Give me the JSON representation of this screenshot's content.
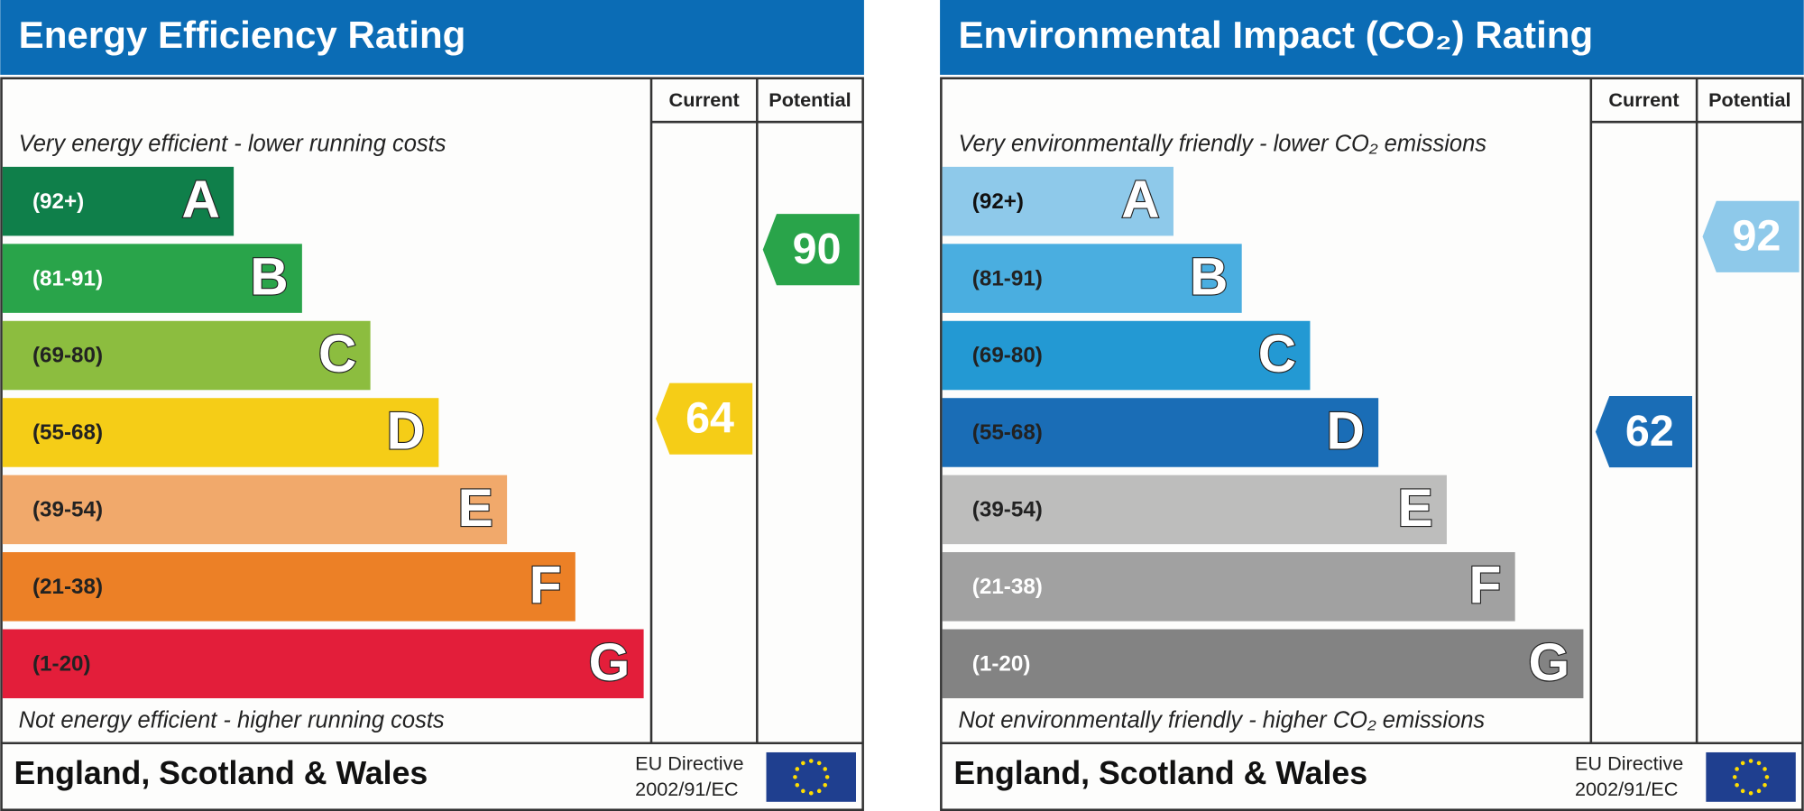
{
  "panels": [
    {
      "title": "Energy Efficiency Rating",
      "columns": [
        "Current",
        "Potential"
      ],
      "top_note": "Very energy efficient - lower running costs",
      "bottom_note": "Not energy efficient - higher running costs",
      "bands": [
        {
          "range": "(92+)",
          "letter": "A",
          "color": "#0f7f4a",
          "label_color": "#ffffff"
        },
        {
          "range": "(81-91)",
          "letter": "B",
          "color": "#29a44a",
          "label_color": "#ffffff"
        },
        {
          "range": "(69-80)",
          "letter": "C",
          "color": "#8cbd3f",
          "label_color": "#222222"
        },
        {
          "range": "(55-68)",
          "letter": "D",
          "color": "#f5cd17",
          "label_color": "#222222"
        },
        {
          "range": "(39-54)",
          "letter": "E",
          "color": "#f1a96b",
          "label_color": "#222222"
        },
        {
          "range": "(21-38)",
          "letter": "F",
          "color": "#ec8026",
          "label_color": "#222222"
        },
        {
          "range": "(1-20)",
          "letter": "G",
          "color": "#e31e3a",
          "label_color": "#222222"
        }
      ],
      "current": 64,
      "current_color": "#f5cd17",
      "potential": 90,
      "potential_color": "#29a44a",
      "footer": "England, Scotland & Wales",
      "directive": [
        "EU Directive",
        "2002/91/EC"
      ]
    },
    {
      "title": "Environmental Impact (CO₂) Rating",
      "columns": [
        "Current",
        "Potential"
      ],
      "top_note": "Very environmentally friendly - lower CO₂ emissions",
      "bottom_note": "Not environmentally friendly - higher CO₂ emissions",
      "bands": [
        {
          "range": "(92+)",
          "letter": "A",
          "color": "#8ec9ea",
          "label_color": "#111111"
        },
        {
          "range": "(81-91)",
          "letter": "B",
          "color": "#4aaee0",
          "label_color": "#222222"
        },
        {
          "range": "(69-80)",
          "letter": "C",
          "color": "#2399d3",
          "label_color": "#222222"
        },
        {
          "range": "(55-68)",
          "letter": "D",
          "color": "#1a6db6",
          "label_color": "#222222"
        },
        {
          "range": "(39-54)",
          "letter": "E",
          "color": "#bdbdbc",
          "label_color": "#222222"
        },
        {
          "range": "(21-38)",
          "letter": "F",
          "color": "#a1a1a1",
          "label_color": "#ffffff"
        },
        {
          "range": "(1-20)",
          "letter": "G",
          "color": "#838383",
          "label_color": "#ffffff"
        }
      ],
      "current": 62,
      "current_color": "#1a6db6",
      "potential": 92,
      "potential_color": "#8ec9ea",
      "footer": "England, Scotland & Wales",
      "directive": [
        "EU Directive",
        "2002/91/EC"
      ]
    }
  ]
}
